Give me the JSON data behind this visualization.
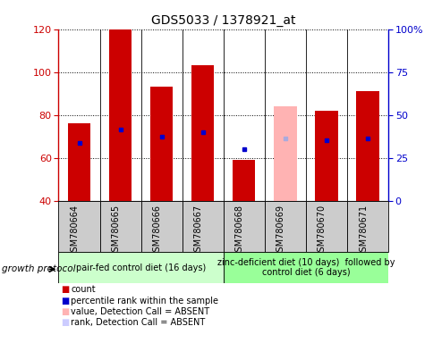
{
  "title": "GDS5033 / 1378921_at",
  "samples": [
    "GSM780664",
    "GSM780665",
    "GSM780666",
    "GSM780667",
    "GSM780668",
    "GSM780669",
    "GSM780670",
    "GSM780671"
  ],
  "count_values": [
    76,
    120,
    93,
    103,
    59,
    null,
    82,
    91
  ],
  "count_absent": [
    null,
    null,
    null,
    null,
    null,
    84,
    null,
    null
  ],
  "percentile_values": [
    67,
    73,
    70,
    72,
    null,
    null,
    68,
    69
  ],
  "percentile_absent": [
    null,
    null,
    null,
    null,
    null,
    69,
    null,
    null
  ],
  "percentile_absent_marker": [
    null,
    null,
    null,
    null,
    64,
    null,
    null,
    null
  ],
  "ylim_left": [
    40,
    120
  ],
  "ylim_right": [
    0,
    100
  ],
  "yticks_left": [
    40,
    60,
    80,
    100,
    120
  ],
  "yticks_right": [
    0,
    25,
    50,
    75,
    100
  ],
  "ytick_labels_right": [
    "0",
    "25",
    "50",
    "75",
    "100%"
  ],
  "bar_width": 0.55,
  "count_color": "#cc0000",
  "count_absent_color": "#ffb3b3",
  "percentile_color": "#0000cc",
  "percentile_absent_color": "#aaaadd",
  "group1_label": "pair-fed control diet (16 days)",
  "group2_label": "zinc-deficient diet (10 days)  followed by\ncontrol diet (6 days)",
  "group1_bg": "#ccffcc",
  "group2_bg": "#99ff99",
  "sample_bg": "#cccccc",
  "legend_items": [
    {
      "color": "#cc0000",
      "label": "count"
    },
    {
      "color": "#0000cc",
      "label": "percentile rank within the sample"
    },
    {
      "color": "#ffb3b3",
      "label": "value, Detection Call = ABSENT"
    },
    {
      "color": "#ccccff",
      "label": "rank, Detection Call = ABSENT"
    }
  ],
  "left_tick_color": "#cc0000",
  "right_tick_color": "#0000cc",
  "growth_protocol_label": "growth protocol",
  "figsize": [
    4.85,
    3.84
  ],
  "dpi": 100
}
